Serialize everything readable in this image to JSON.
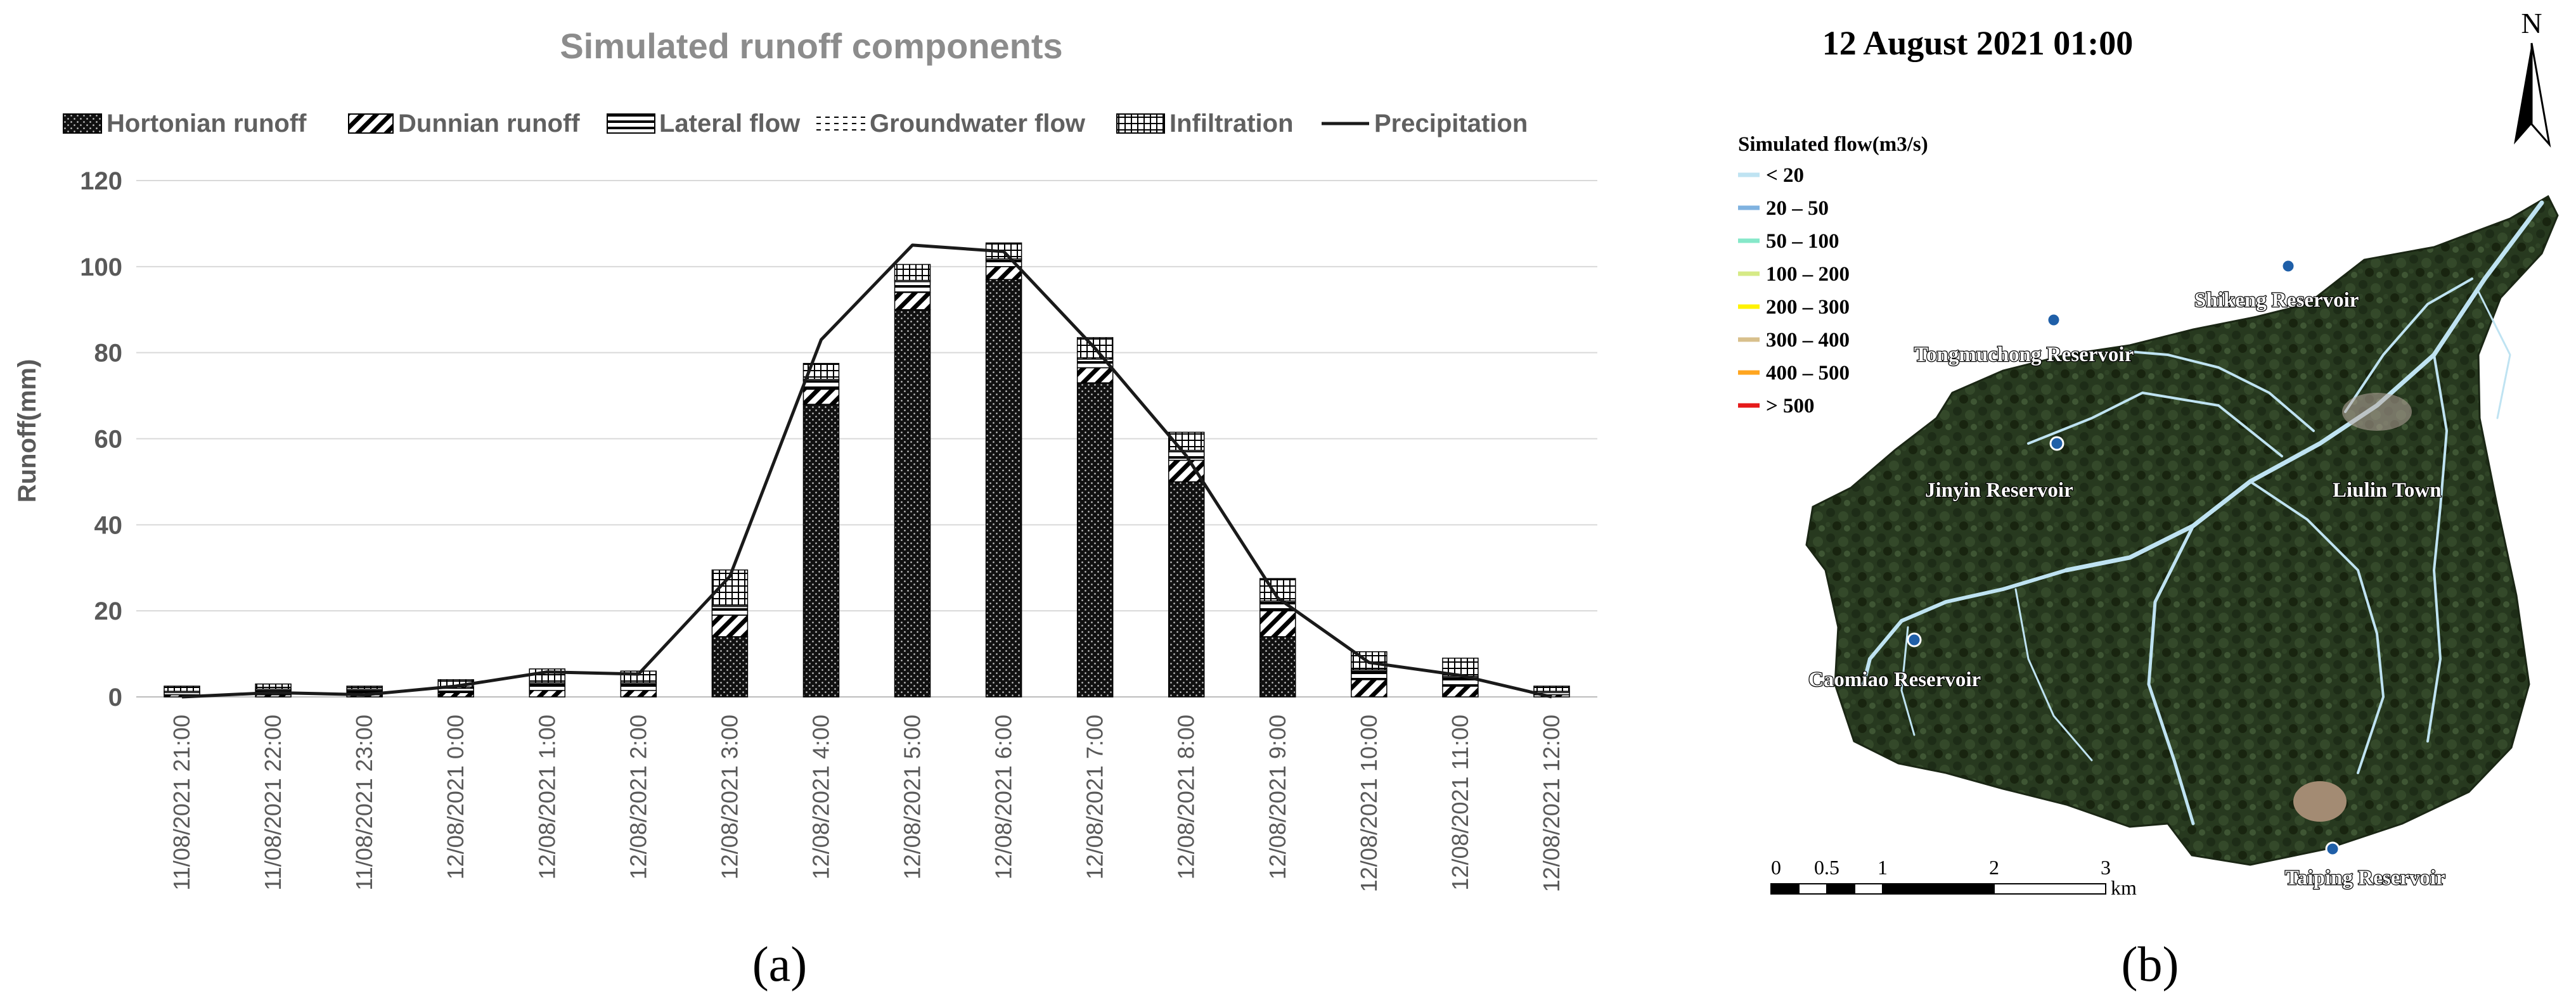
{
  "panel_a": {
    "label": "(a)",
    "title": "Simulated runoff components",
    "legend": [
      {
        "key": "hortonian",
        "label": "Hortonian runoff"
      },
      {
        "key": "dunnian",
        "label": "Dunnian runoff"
      },
      {
        "key": "lateral",
        "label": "Lateral flow"
      },
      {
        "key": "groundwater",
        "label": "Groundwater flow"
      },
      {
        "key": "infiltration",
        "label": "Infiltration"
      },
      {
        "key": "precip",
        "label": "Precipitation"
      }
    ]
  },
  "chart_data": {
    "type": "bar",
    "stacked": true,
    "title": "Simulated runoff components",
    "xlabel": "",
    "ylabel": "Runoff(mm)",
    "ylim": [
      0,
      120
    ],
    "yticks": [
      0,
      20,
      40,
      60,
      80,
      100,
      120
    ],
    "grid": true,
    "categories": [
      "11/08/2021 21:00",
      "11/08/2021 22:00",
      "11/08/2021 23:00",
      "12/08/2021 0:00",
      "12/08/2021 1:00",
      "12/08/2021 2:00",
      "12/08/2021 3:00",
      "12/08/2021 4:00",
      "12/08/2021 5:00",
      "12/08/2021 6:00",
      "12/08/2021 7:00",
      "12/08/2021 8:00",
      "12/08/2021 9:00",
      "12/08/2021 10:00",
      "12/08/2021 11:00",
      "12/08/2021 12:00"
    ],
    "series": [
      {
        "name": "Hortonian runoff",
        "values": [
          0,
          0,
          0,
          0,
          0,
          0,
          14,
          68,
          90,
          97,
          73,
          50,
          14,
          0,
          0,
          0
        ]
      },
      {
        "name": "Dunnian runoff",
        "values": [
          0.5,
          0.5,
          0.5,
          1,
          1.5,
          1.5,
          5,
          3.5,
          4,
          3,
          3.5,
          5,
          6,
          4,
          2.5,
          0.5
        ]
      },
      {
        "name": "Lateral flow",
        "values": [
          0.5,
          1,
          1,
          1,
          1.5,
          1.5,
          2,
          2,
          2.5,
          1.5,
          2,
          2,
          2,
          2,
          2,
          0.5
        ]
      },
      {
        "name": "Groundwater flow",
        "values": [
          0.3,
          0.3,
          0.3,
          0.3,
          0.3,
          0.3,
          0.3,
          0.3,
          0.3,
          0.3,
          0.3,
          0.3,
          0.3,
          0.3,
          0.3,
          0.3
        ]
      },
      {
        "name": "Infiltration",
        "values": [
          1.2,
          1.2,
          0.7,
          1.7,
          3.2,
          2.7,
          8.2,
          3.7,
          3.7,
          3.7,
          4.7,
          4.2,
          5.2,
          4.2,
          4.2,
          1.2
        ]
      },
      {
        "name": "Precipitation",
        "type": "line",
        "values": [
          0,
          1,
          0.5,
          2.5,
          5.8,
          5.3,
          28,
          83,
          105,
          103.5,
          81,
          56,
          23,
          8,
          5,
          0
        ]
      }
    ]
  },
  "panel_b": {
    "label": "(b)",
    "datetime": "12 August 2021 01:00",
    "north": "N",
    "legend_title": "Simulated flow(m3/s)",
    "legend": [
      {
        "label": "< 20",
        "color": "#bfe3f2"
      },
      {
        "label": "20 – 50",
        "color": "#7fb2e0"
      },
      {
        "label": "50 – 100",
        "color": "#86e8c9"
      },
      {
        "label": "100 – 200",
        "color": "#d6ea86"
      },
      {
        "label": "200 – 300",
        "color": "#fff200"
      },
      {
        "label": "300 – 400",
        "color": "#d8c08c"
      },
      {
        "label": "400 – 500",
        "color": "#ffa51f"
      },
      {
        "label": "> 500",
        "color": "#e61a1a"
      }
    ],
    "places": [
      {
        "key": "shikeng",
        "name": "Shikeng Reservoir"
      },
      {
        "key": "tongmuchong",
        "name": "Tongmuchong Reservoir"
      },
      {
        "key": "jinyin",
        "name": "Jinyin Reservoir"
      },
      {
        "key": "liulin",
        "name": "Liulin Town"
      },
      {
        "key": "caomiao",
        "name": "Caomiao Reservoir"
      },
      {
        "key": "taiping",
        "name": "Taiping Reservoir"
      }
    ],
    "scale_ticks": [
      "0",
      "0.5",
      "1",
      "2",
      "3"
    ],
    "scale_unit": "km"
  }
}
